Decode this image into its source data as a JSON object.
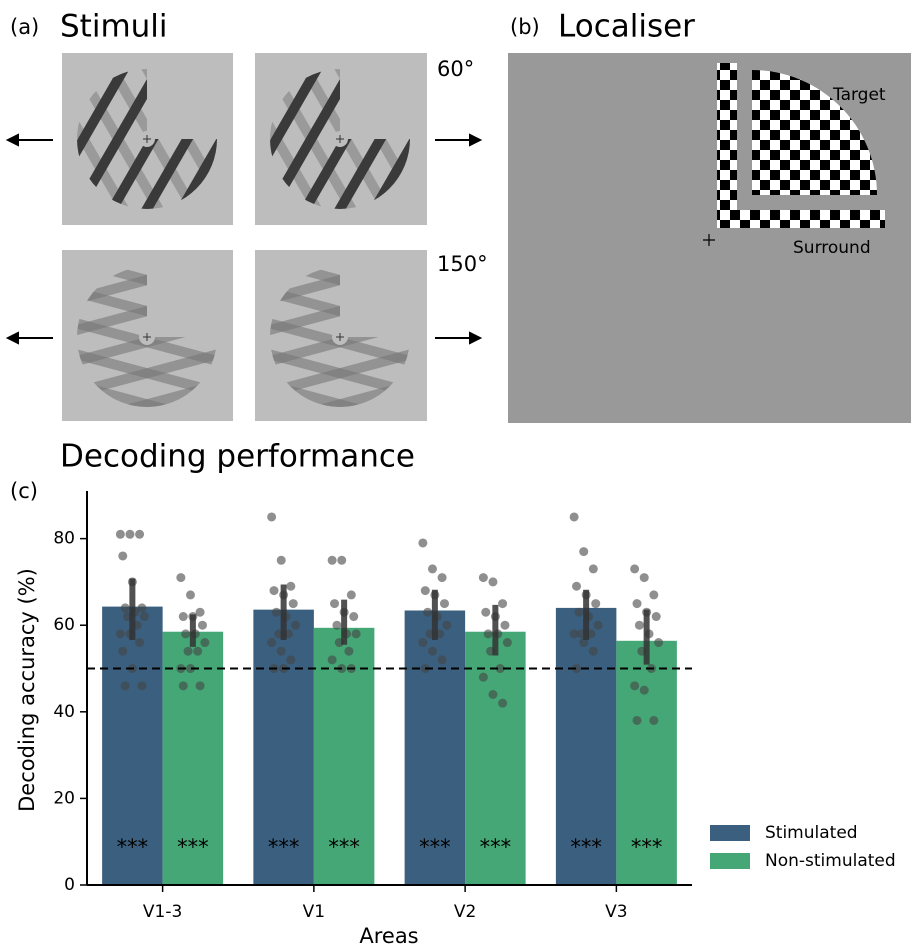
{
  "panels": {
    "a": {
      "label": "(a)",
      "title": "Stimuli",
      "angles": [
        "60°",
        "150°"
      ]
    },
    "b": {
      "label": "(b)",
      "title": "Localiser",
      "target": "Target",
      "surround": "Surround"
    }
  },
  "chart_data": {
    "type": "bar",
    "label": "(c)",
    "title": "Decoding performance",
    "x_label": "Areas",
    "y_label": "Decoding accuracy (%)",
    "categories": [
      "V1-3",
      "V1",
      "V2",
      "V3"
    ],
    "ylim": [
      0,
      91
    ],
    "yticks": [
      0,
      20,
      40,
      60,
      80
    ],
    "chance": 50,
    "series": [
      {
        "name": "Stimulated",
        "color": "#3b5f7f",
        "values": [
          64.3,
          63.6,
          63.4,
          64.0
        ],
        "ci": [
          [
            56.6,
            70.8
          ],
          [
            56.6,
            69.4
          ],
          [
            56.6,
            68.2
          ],
          [
            56.6,
            68.2
          ]
        ],
        "sig_labels": [
          "***",
          "***",
          "***",
          "***"
        ],
        "points": [
          [
            81,
            81,
            81,
            76,
            70,
            64,
            64,
            63,
            62,
            62,
            60,
            58,
            58,
            56,
            54,
            50,
            46,
            46
          ],
          [
            85,
            75,
            69,
            68,
            67,
            65,
            63,
            62,
            60,
            58,
            58,
            56,
            54,
            52,
            50,
            50
          ],
          [
            79,
            73,
            71,
            68,
            67,
            65,
            63,
            62,
            60,
            58,
            58,
            56,
            54,
            52,
            50
          ],
          [
            85,
            77,
            73,
            69,
            67,
            65,
            63,
            62,
            60,
            58,
            58,
            58,
            56,
            54,
            50
          ]
        ]
      },
      {
        "name": "Non-stimulated",
        "color": "#44a775",
        "values": [
          58.5,
          59.4,
          58.5,
          56.4
        ],
        "ci": [
          [
            55.0,
            62.5
          ],
          [
            55.5,
            65.9
          ],
          [
            53.0,
            64.7
          ],
          [
            50.9,
            63.6
          ]
        ],
        "sig_labels": [
          "***",
          "***",
          "***",
          "***"
        ],
        "points": [
          [
            71,
            67,
            63,
            62,
            62,
            60,
            58,
            58,
            56,
            54,
            54,
            50,
            50,
            46,
            46
          ],
          [
            75,
            75,
            67,
            65,
            63,
            62,
            60,
            58,
            58,
            56,
            54,
            52,
            50,
            50
          ],
          [
            71,
            70,
            65,
            63,
            62,
            60,
            58,
            58,
            56,
            54,
            50,
            48,
            44,
            42
          ],
          [
            73,
            71,
            67,
            65,
            63,
            62,
            60,
            58,
            56,
            54,
            50,
            46,
            45,
            38,
            38
          ]
        ]
      }
    ]
  }
}
